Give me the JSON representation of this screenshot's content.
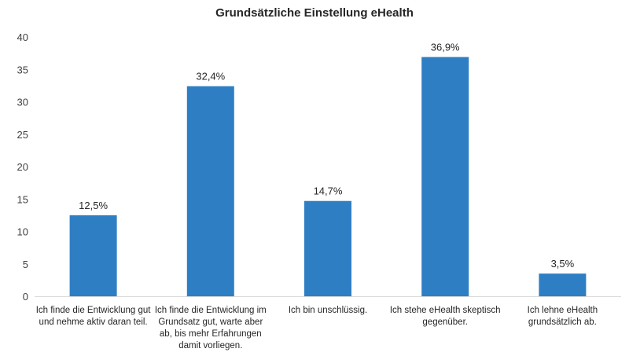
{
  "chart_data": {
    "type": "bar",
    "title": "Grundsätzliche Einstellung eHealth",
    "xlabel": "",
    "ylabel": "",
    "ylim": [
      0,
      40
    ],
    "yticks": [
      0,
      5,
      10,
      15,
      20,
      25,
      30,
      35,
      40
    ],
    "grid": false,
    "legend": "none",
    "bar_color": "#2E7EC4",
    "categories": [
      "Ich finde die Entwicklung gut und nehme aktiv daran teil.",
      "Ich finde die Entwicklung im Grundsatz gut, warte aber ab, bis mehr Erfahrungen damit vorliegen.",
      "Ich bin unschlüssig.",
      "Ich stehe eHealth skeptisch gegenüber.",
      "Ich lehne eHealth grundsätzlich ab."
    ],
    "values": [
      12.5,
      32.4,
      14.7,
      36.9,
      3.5
    ],
    "data_labels": [
      "12,5%",
      "32,4%",
      "14,7%",
      "36,9%",
      "3,5%"
    ]
  }
}
